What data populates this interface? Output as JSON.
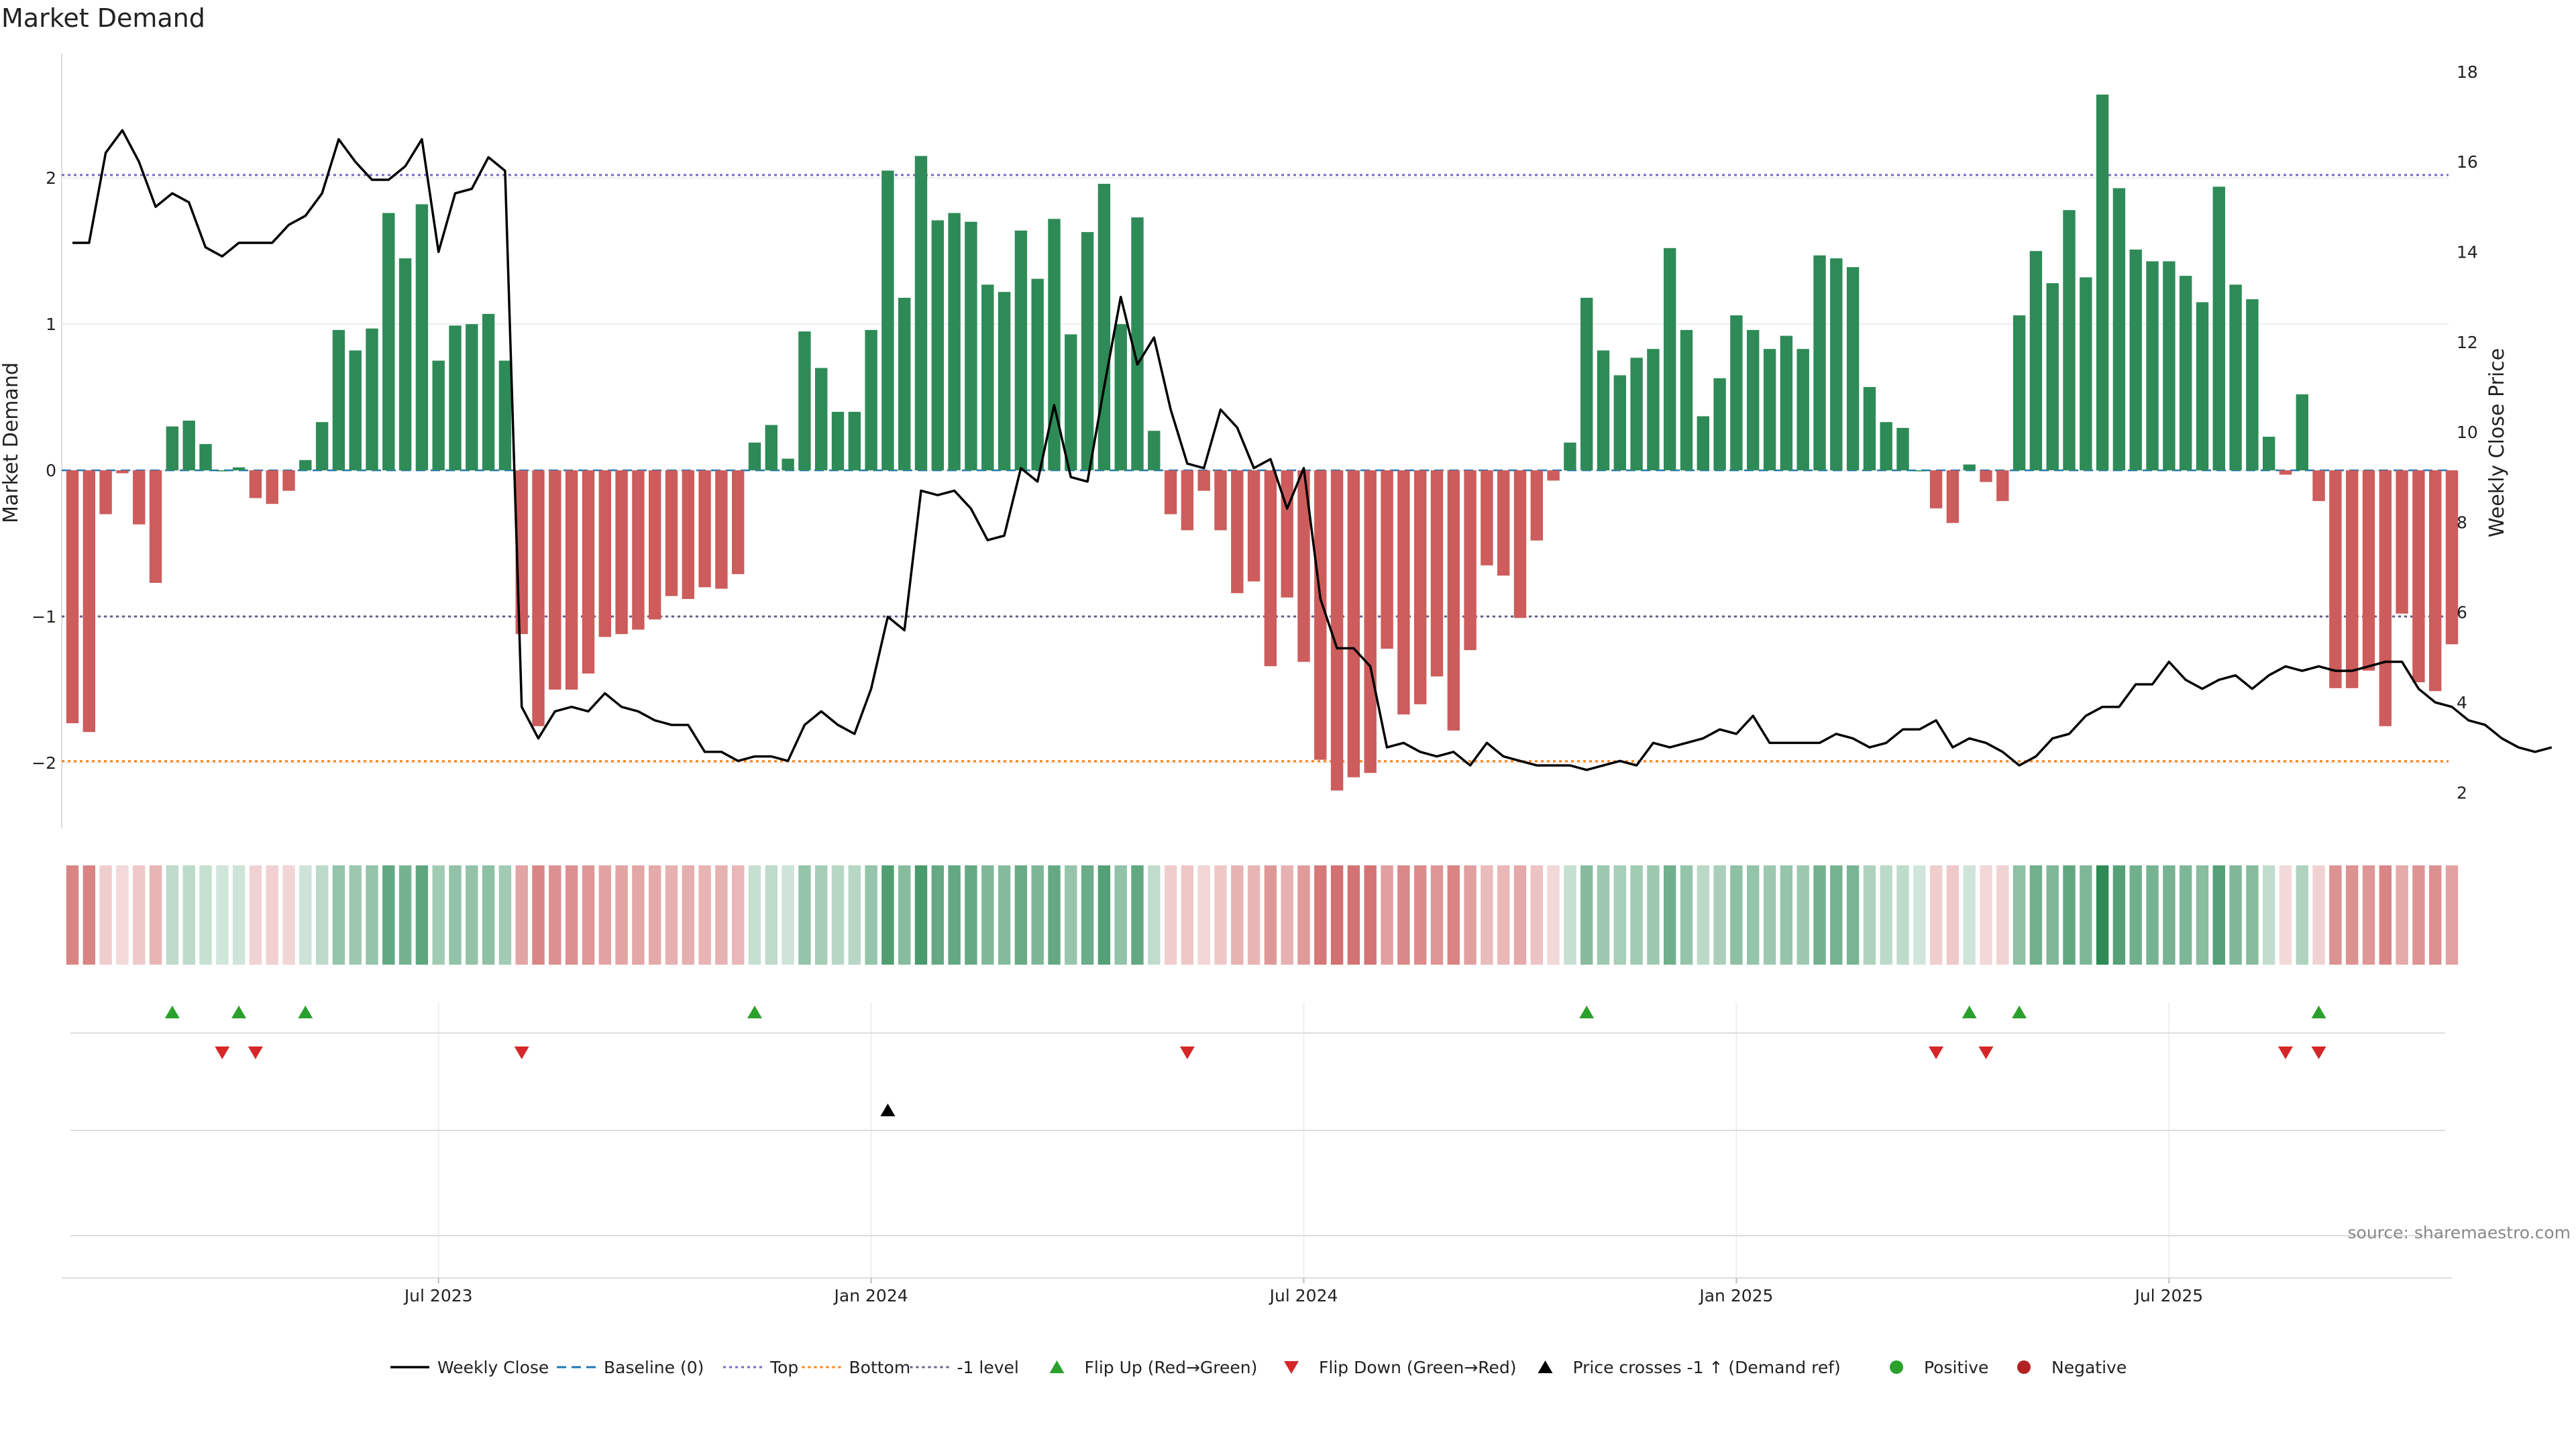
{
  "chart_data": {
    "type": "bar",
    "title": "Market Demand",
    "ylabel_left": "Market Demand",
    "ylabel_right": "Weekly Close Price",
    "source": "source: sharemaestro.com",
    "left_axis": {
      "ylim": [
        -2.45,
        2.85
      ],
      "ticks": [
        2,
        1,
        0,
        -1,
        -2
      ],
      "tick_labels": [
        "2",
        "1",
        "0",
        "−1",
        "−2"
      ]
    },
    "right_axis": {
      "ylim": [
        1.2,
        18.4
      ],
      "ticks": [
        2,
        4,
        6,
        8,
        10,
        12,
        14,
        16,
        18
      ],
      "tick_labels": [
        "2",
        "4",
        "6",
        "8",
        "10",
        "12",
        "14",
        "16",
        "18"
      ]
    },
    "x_ticks": [
      {
        "week": 22,
        "label": "Jul 2023"
      },
      {
        "week": 48,
        "label": "Jan 2024"
      },
      {
        "week": 74,
        "label": "Jul 2024"
      },
      {
        "week": 100,
        "label": "Jan 2025"
      },
      {
        "week": 126,
        "label": "Jul 2025"
      }
    ],
    "reference_lines": {
      "top": 2.02,
      "bottom": -1.99,
      "minus_one": -1.0,
      "baseline": 0
    },
    "demand": [
      -1.73,
      -1.79,
      -0.3,
      -0.02,
      -0.37,
      -0.77,
      0.3,
      0.34,
      0.18,
      0.0,
      0.02,
      -0.19,
      -0.23,
      -0.14,
      0.07,
      0.33,
      0.96,
      0.82,
      0.97,
      1.76,
      1.45,
      1.82,
      0.75,
      0.99,
      1.0,
      1.07,
      0.75,
      -1.12,
      -1.75,
      -1.5,
      -1.5,
      -1.39,
      -1.14,
      -1.12,
      -1.09,
      -1.02,
      -0.86,
      -0.88,
      -0.8,
      -0.81,
      -0.71,
      0.19,
      0.31,
      0.08,
      0.95,
      0.7,
      0.4,
      0.4,
      0.96,
      2.05,
      1.18,
      2.15,
      1.71,
      1.76,
      1.7,
      1.27,
      1.22,
      1.64,
      1.31,
      1.72,
      0.93,
      1.63,
      1.96,
      1.0,
      1.73,
      0.27,
      -0.3,
      -0.41,
      -0.14,
      -0.41,
      -0.84,
      -0.76,
      -1.34,
      -0.87,
      -1.31,
      -1.98,
      -2.19,
      -2.1,
      -2.07,
      -1.22,
      -1.67,
      -1.6,
      -1.41,
      -1.78,
      -1.23,
      -0.65,
      -0.72,
      -1.01,
      -0.48,
      -0.07,
      0.19,
      1.18,
      0.82,
      0.65,
      0.77,
      0.83,
      1.52,
      0.96,
      0.37,
      0.63,
      1.06,
      0.96,
      0.83,
      0.92,
      0.83,
      1.47,
      1.45,
      1.39,
      0.57,
      0.33,
      0.29,
      0.0,
      -0.26,
      -0.36,
      0.04,
      -0.08,
      -0.21,
      1.06,
      1.5,
      1.28,
      1.78,
      1.32,
      2.57,
      1.93,
      1.51,
      1.43,
      1.43,
      1.33,
      1.15,
      1.94,
      1.27,
      1.17,
      0.23,
      -0.03,
      0.52,
      -0.21,
      -1.49,
      -1.49,
      -1.37,
      -1.75,
      -0.98,
      -1.45,
      -1.51,
      -1.19
    ],
    "weekly_close": [
      14.2,
      14.2,
      16.2,
      16.7,
      16.0,
      15.0,
      15.3,
      15.1,
      14.1,
      13.9,
      14.2,
      14.2,
      14.2,
      14.6,
      14.8,
      15.3,
      16.5,
      16.0,
      15.6,
      15.6,
      15.9,
      16.5,
      14.0,
      15.3,
      15.4,
      16.1,
      15.8,
      3.9,
      3.2,
      3.8,
      3.9,
      3.8,
      4.2,
      3.9,
      3.8,
      3.6,
      3.5,
      3.5,
      2.9,
      2.9,
      2.7,
      2.8,
      2.8,
      2.7,
      3.5,
      3.8,
      3.5,
      3.3,
      4.3,
      5.9,
      5.6,
      8.7,
      8.6,
      8.7,
      8.3,
      7.6,
      7.7,
      9.2,
      8.9,
      10.6,
      9.0,
      8.9,
      11.0,
      13.0,
      11.5,
      12.1,
      10.5,
      9.3,
      9.2,
      10.5,
      10.1,
      9.2,
      9.4,
      8.3,
      9.2,
      6.3,
      5.2,
      5.2,
      4.8,
      3.0,
      3.1,
      2.9,
      2.8,
      2.9,
      2.6,
      3.1,
      2.8,
      2.7,
      2.6,
      2.6,
      2.6,
      2.5,
      2.6,
      2.7,
      2.6,
      3.1,
      3.0,
      3.1,
      3.2,
      3.4,
      3.3,
      3.7,
      3.1,
      3.1,
      3.1,
      3.1,
      3.3,
      3.2,
      3.0,
      3.1,
      3.4,
      3.4,
      3.6,
      3.0,
      3.2,
      3.1,
      2.9,
      2.6,
      2.8,
      3.2,
      3.3,
      3.7,
      3.9,
      3.9,
      4.4,
      4.4,
      4.9,
      4.5,
      4.3,
      4.5,
      4.6,
      4.3,
      4.6,
      4.8,
      4.7,
      4.8,
      4.7,
      4.7,
      4.8,
      4.9,
      4.9,
      4.3,
      4.0,
      3.9,
      3.6,
      3.5,
      3.2,
      3.0,
      2.9,
      3.0
    ],
    "flip_up_weeks": [
      6,
      10,
      14,
      41,
      91,
      114,
      117,
      135
    ],
    "flip_down_weeks": [
      9,
      11,
      27,
      67,
      112,
      115,
      133,
      135
    ],
    "price_cross_weeks": [
      49
    ],
    "colors": {
      "positive": "#2e8b57",
      "negative": "#cd5c5c",
      "weekly_close": "#000000",
      "baseline": "#1f77b4",
      "top": "#7b68c4",
      "bottom": "#ff7f0e",
      "minus_one": "#6a5a8a",
      "flip_up": "#2ca02c",
      "flip_down": "#d62728",
      "price_cross": "#000000",
      "positive_dot": "#2ca02c",
      "negative_dot": "#b22222"
    },
    "legend": [
      {
        "label": "Weekly Close",
        "kind": "line-solid",
        "color": "#000000"
      },
      {
        "label": "Baseline (0)",
        "kind": "line-dash",
        "color": "#1f77b4"
      },
      {
        "label": "Top",
        "kind": "line-dot",
        "color": "#7b68c4"
      },
      {
        "label": "Bottom",
        "kind": "line-dot",
        "color": "#ff7f0e"
      },
      {
        "label": "-1 level",
        "kind": "line-dot",
        "color": "#6a5a8a"
      },
      {
        "label": "Flip Up (Red→Green)",
        "kind": "tri-up",
        "color": "#2ca02c"
      },
      {
        "label": "Flip Down (Green→Red)",
        "kind": "tri-down",
        "color": "#d62728"
      },
      {
        "label": "Price crosses -1 ↑ (Demand ref)",
        "kind": "tri-up",
        "color": "#000000"
      },
      {
        "label": "Positive",
        "kind": "dot",
        "color": "#2ca02c"
      },
      {
        "label": "Negative",
        "kind": "dot",
        "color": "#b22222"
      }
    ],
    "legend_placement": "bottom-center",
    "grid": true
  }
}
